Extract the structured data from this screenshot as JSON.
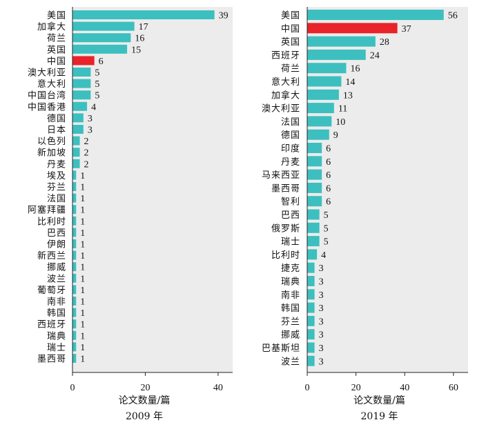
{
  "chart_data": [
    {
      "type": "bar",
      "orientation": "horizontal",
      "categories": [
        "美国",
        "加拿大",
        "荷兰",
        "英国",
        "中国",
        "澳大利亚",
        "意大利",
        "中国台湾",
        "中国香港",
        "德国",
        "日本",
        "以色列",
        "新加坡",
        "丹麦",
        "埃及",
        "芬兰",
        "法国",
        "阿塞拜疆",
        "比利时",
        "巴西",
        "伊朗",
        "新西兰",
        "挪威",
        "波兰",
        "葡萄牙",
        "南非",
        "韩国",
        "西班牙",
        "瑞典",
        "瑞士",
        "墨西哥"
      ],
      "values": [
        39,
        17,
        16,
        15,
        6,
        5,
        5,
        5,
        4,
        3,
        3,
        2,
        2,
        2,
        1,
        1,
        1,
        1,
        1,
        1,
        1,
        1,
        1,
        1,
        1,
        1,
        1,
        1,
        1,
        1,
        1
      ],
      "highlight": "中国",
      "xlabel": "论文数量/篇",
      "caption": "2009 年",
      "xlim": [
        0,
        44
      ],
      "xticks": [
        0,
        20,
        40
      ]
    },
    {
      "type": "bar",
      "orientation": "horizontal",
      "categories": [
        "美国",
        "中国",
        "英国",
        "西班牙",
        "荷兰",
        "意大利",
        "加拿大",
        "澳大利亚",
        "法国",
        "德国",
        "印度",
        "丹麦",
        "马来西亚",
        "墨西哥",
        "智利",
        "巴西",
        "俄罗斯",
        "瑞士",
        "比利时",
        "捷克",
        "瑞典",
        "南非",
        "韩国",
        "芬兰",
        "挪威",
        "巴基斯坦",
        "波兰"
      ],
      "values": [
        56,
        37,
        28,
        24,
        16,
        14,
        13,
        11,
        10,
        9,
        6,
        6,
        6,
        6,
        6,
        5,
        5,
        5,
        4,
        3,
        3,
        3,
        3,
        3,
        3,
        3,
        3
      ],
      "highlight": "中国",
      "xlabel": "论文数量/篇",
      "caption": "2019 年",
      "xlim": [
        0,
        66
      ],
      "xticks": [
        0,
        20,
        40,
        60
      ]
    }
  ],
  "colors": {
    "bar": "#3dbfbf",
    "highlight": "#e8242a",
    "panel_bg": "#ececec"
  }
}
